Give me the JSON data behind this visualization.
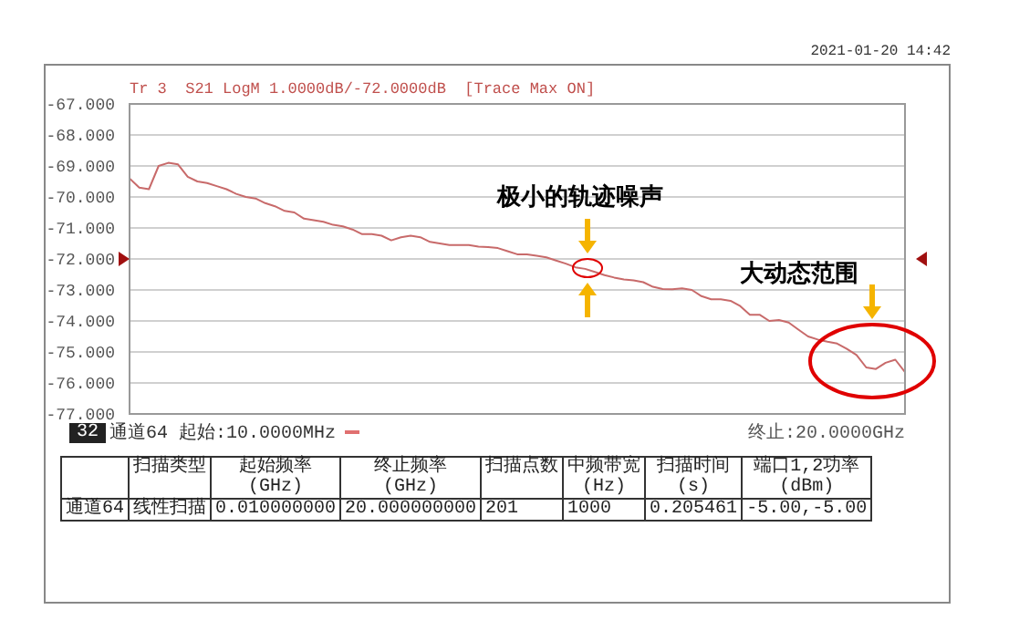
{
  "chart_data": {
    "type": "line",
    "title": "Tr 3  S21 LogM 1.0000dB/-72.0000dB  [Trace Max ON]",
    "categories": [
      null,
      null,
      null,
      null,
      null,
      null,
      null,
      null,
      null,
      null,
      null,
      null,
      null,
      null,
      null,
      null,
      null,
      null,
      null,
      null,
      null,
      null,
      null,
      null,
      null,
      null,
      null,
      null,
      null,
      null,
      null,
      null,
      null,
      null,
      null,
      null,
      null,
      null,
      null,
      null,
      null,
      null,
      null,
      null,
      null,
      null,
      null,
      null,
      null,
      null,
      null,
      null,
      null,
      null,
      null,
      null,
      null,
      null,
      null,
      null,
      null,
      null,
      null,
      null,
      null,
      null,
      null,
      null,
      null,
      null,
      null,
      null,
      null,
      null,
      null,
      null,
      null,
      null,
      null,
      null,
      null
    ],
    "series": [
      {
        "color": "#c86a6a",
        "values": [
          -69.4,
          -69.7,
          -69.75,
          -69.0,
          -68.9,
          -68.95,
          -69.35,
          -69.5,
          -69.55,
          -69.65,
          -69.75,
          -69.9,
          -70.0,
          -70.05,
          -70.2,
          -70.3,
          -70.45,
          -70.5,
          -70.7,
          -70.75,
          -70.8,
          -70.9,
          -70.95,
          -71.05,
          -71.2,
          -71.2,
          -71.25,
          -71.4,
          -71.3,
          -71.25,
          -71.3,
          -71.45,
          -71.5,
          -71.55,
          -71.55,
          -71.55,
          -71.6,
          -71.62,
          -71.65,
          -71.75,
          -71.85,
          -71.85,
          -71.9,
          -71.95,
          -72.05,
          -72.15,
          -72.27,
          -72.32,
          -72.42,
          -72.52,
          -72.6,
          -72.66,
          -72.69,
          -72.75,
          -72.9,
          -72.97,
          -72.98,
          -72.95,
          -73.0,
          -73.2,
          -73.3,
          -73.3,
          -73.35,
          -73.52,
          -73.8,
          -73.8,
          -74.0,
          -73.97,
          -74.05,
          -74.28,
          -74.5,
          -74.6,
          -74.67,
          -74.73,
          -74.9,
          -75.1,
          -75.5,
          -75.55,
          -75.35,
          -75.25,
          -75.65
        ]
      }
    ],
    "ylim": [
      -77,
      -67
    ],
    "yticks": [
      {
        "value": -67,
        "label": "-67.000"
      },
      {
        "value": -68,
        "label": "-68.000"
      },
      {
        "value": -69,
        "label": "-69.000"
      },
      {
        "value": -70,
        "label": "-70.000"
      },
      {
        "value": -71,
        "label": "-71.000"
      },
      {
        "value": -72,
        "label": "-72.000"
      },
      {
        "value": -73,
        "label": "-73.000"
      },
      {
        "value": -74,
        "label": "-74.000"
      },
      {
        "value": -75,
        "label": "-75.000"
      },
      {
        "value": -76,
        "label": "-76.000"
      },
      {
        "value": -77,
        "label": "-77.000"
      }
    ],
    "grid": true,
    "tick_labels": "y",
    "annotations": [
      "2021-01-20 14:42",
      "32",
      "通道64",
      "起始:10.0000MHz",
      "终止:20.0000GHz",
      "扫描类型",
      "起始频率\n(GHz)",
      "终止频率\n(GHz)",
      "扫描点数",
      "中频带宽\n(Hz)",
      "扫描时间\n(s)",
      "端口1,2功率\n(dBm)",
      "通道64",
      "线性扫描",
      "0.010000000",
      "20.000000000",
      "201",
      "1000",
      "0.205461",
      "-5.00,-5.00",
      "极小的轨迹噪声",
      "大动态范围"
    ]
  }
}
